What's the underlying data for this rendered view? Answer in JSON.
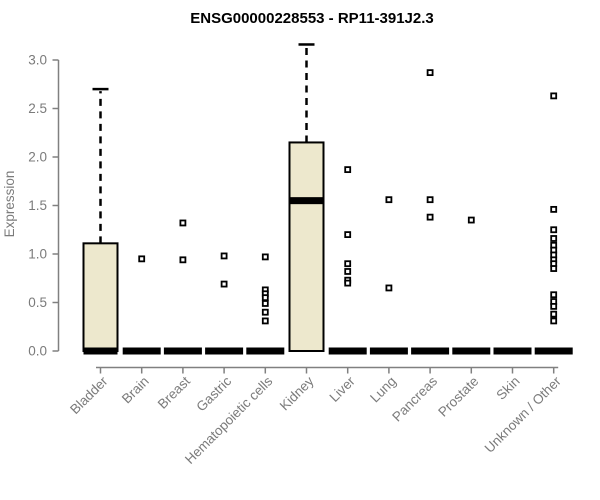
{
  "chart_data": {
    "type": "boxplot",
    "title": "ENSG00000228553 - RP11-391J2.3",
    "ylabel": "Expression",
    "xlabel": "",
    "ylim": [
      0.0,
      3.2
    ],
    "yticks": [
      "0.0",
      "0.5",
      "1.0",
      "1.5",
      "2.0",
      "2.5",
      "3.0"
    ],
    "grid": false,
    "legend": "none",
    "categories": [
      "Bladder",
      "Brain",
      "Breast",
      "Gastric",
      "Hematopoietic cells",
      "Kidney",
      "Liver",
      "Lung",
      "Pancreas",
      "Prostate",
      "Skin",
      "Unknown / Other"
    ],
    "boxes": [
      {
        "category": "Bladder",
        "q1": 0,
        "median": 0,
        "q3": 1.11,
        "whisker_low": 0,
        "whisker_high": 2.7,
        "outliers": []
      },
      {
        "category": "Brain",
        "q1": 0,
        "median": 0,
        "q3": 0,
        "whisker_low": 0,
        "whisker_high": 0,
        "outliers": [
          0.95
        ]
      },
      {
        "category": "Breast",
        "q1": 0,
        "median": 0,
        "q3": 0,
        "whisker_low": 0,
        "whisker_high": 0,
        "outliers": [
          1.32,
          0.94
        ]
      },
      {
        "category": "Gastric",
        "q1": 0,
        "median": 0,
        "q3": 0,
        "whisker_low": 0,
        "whisker_high": 0,
        "outliers": [
          0.98,
          0.69
        ]
      },
      {
        "category": "Hematopoietic cells",
        "q1": 0,
        "median": 0,
        "q3": 0,
        "whisker_low": 0,
        "whisker_high": 0,
        "outliers": [
          0.97,
          0.63,
          0.59,
          0.55,
          0.49,
          0.4,
          0.31
        ]
      },
      {
        "category": "Kidney",
        "q1": 0,
        "median": 1.55,
        "q3": 2.15,
        "whisker_low": 0,
        "whisker_high": 3.16,
        "outliers": []
      },
      {
        "category": "Liver",
        "q1": 0,
        "median": 0,
        "q3": 0,
        "whisker_low": 0,
        "whisker_high": 0,
        "outliers": [
          1.87,
          1.2,
          0.9,
          0.82,
          0.73,
          0.7
        ]
      },
      {
        "category": "Lung",
        "q1": 0,
        "median": 0,
        "q3": 0,
        "whisker_low": 0,
        "whisker_high": 0,
        "outliers": [
          1.56,
          0.65
        ]
      },
      {
        "category": "Pancreas",
        "q1": 0,
        "median": 0,
        "q3": 0,
        "whisker_low": 0,
        "whisker_high": 0,
        "outliers": [
          2.87,
          1.56,
          1.38
        ]
      },
      {
        "category": "Prostate",
        "q1": 0,
        "median": 0,
        "q3": 0,
        "whisker_low": 0,
        "whisker_high": 0,
        "outliers": [
          1.35
        ]
      },
      {
        "category": "Skin",
        "q1": 0,
        "median": 0,
        "q3": 0,
        "whisker_low": 0,
        "whisker_high": 0,
        "outliers": []
      },
      {
        "category": "Unknown / Other",
        "q1": 0,
        "median": 0,
        "q3": 0,
        "whisker_low": 0,
        "whisker_high": 0,
        "outliers": [
          2.63,
          1.46,
          1.25,
          1.16,
          1.09,
          1.04,
          0.99,
          0.94,
          0.9,
          0.85,
          0.58,
          0.51,
          0.46,
          0.38,
          0.31
        ]
      }
    ],
    "colors": {
      "box_fill": "#EDE8CD",
      "box_border": "#000000",
      "median": "#000000",
      "outlier_border": "#000000",
      "outlier_fill": "#ffffff",
      "axis": "#808080",
      "tick_label": "#7b7b7b",
      "title": "#000000",
      "background": "#ffffff"
    }
  }
}
